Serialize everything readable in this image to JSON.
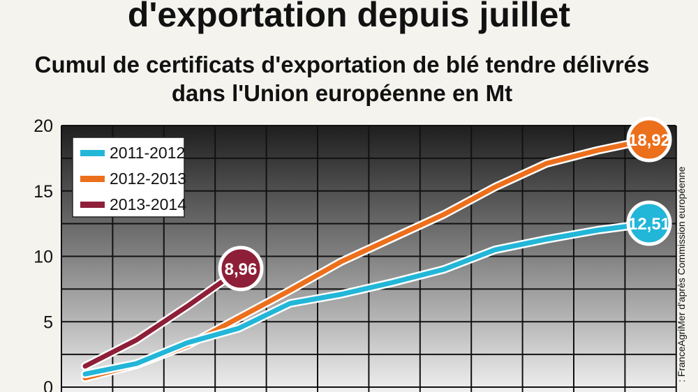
{
  "header": {
    "title": "d'exportation depuis juillet",
    "subtitle_line1": "Cumul de certificats d'exportation de blé tendre délivrés",
    "subtitle_line2": "dans l'Union européenne en Mt"
  },
  "source": ": FranceAgriMer d'après Commission européenne",
  "chart_data": {
    "type": "line",
    "title": "Cumul de certificats d'exportation de blé tendre délivrés dans l'Union européenne en Mt",
    "ylim": [
      0,
      20
    ],
    "yticks": [
      "0",
      "5",
      "10",
      "15",
      "20"
    ],
    "grid": true,
    "legend_position": "top-left",
    "series": [
      {
        "name": "2011-2012",
        "color": "#22b6d8",
        "values": [
          1.0,
          1.8,
          3.4,
          4.5,
          6.4,
          7.1,
          8.0,
          9.0,
          10.5,
          11.3,
          12.0,
          12.51
        ],
        "end_label": "12,51"
      },
      {
        "name": "2012-2013",
        "color": "#ec6f1c",
        "values": [
          0.7,
          1.7,
          3.2,
          5.3,
          7.4,
          9.6,
          11.4,
          13.2,
          15.3,
          17.1,
          18.1,
          18.92
        ],
        "end_label": "18,92"
      },
      {
        "name": "2013-2014",
        "color": "#8e1f38",
        "values": [
          1.6,
          3.6,
          6.2,
          8.96
        ],
        "end_label": "8,96"
      }
    ]
  }
}
